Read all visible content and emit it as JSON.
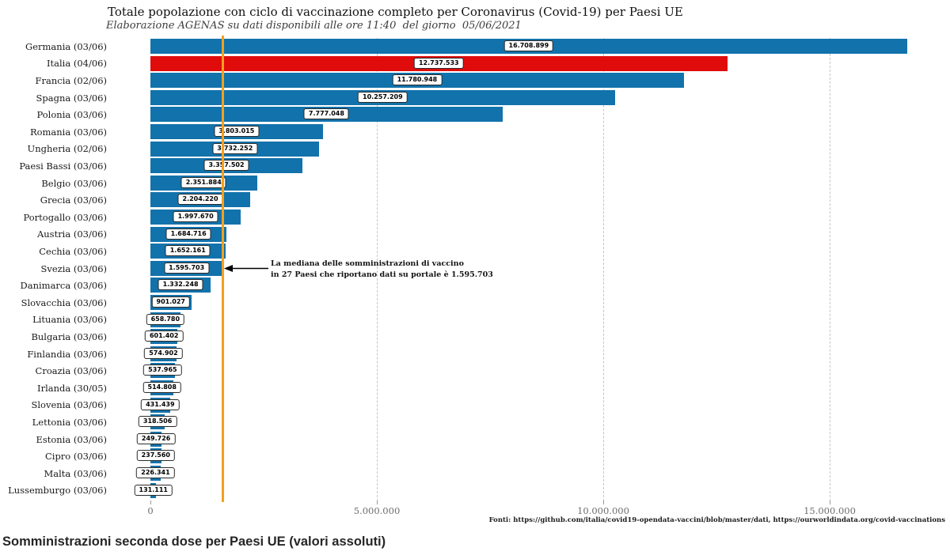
{
  "header": {
    "title": "Totale popolazione con ciclo di vaccinazione completo per Coronavirus (Covid-19) per Paesi UE",
    "subtitle": "Elaborazione AGENAS su dati disponibili alle ore 11:40  del giorno  05/06/2021"
  },
  "chart_data": {
    "type": "bar",
    "orientation": "horizontal",
    "title": "Totale popolazione con ciclo di vaccinazione completo per Coronavirus (Covid-19) per Paesi UE",
    "subtitle": "Elaborazione AGENAS su dati disponibili alle ore 11:40  del giorno  05/06/2021",
    "xlim": [
      0,
      17500000
    ],
    "grid": "vertical-dashed",
    "xticks": [
      {
        "value": 0,
        "label": "0"
      },
      {
        "value": 5000000,
        "label": "5.000.000"
      },
      {
        "value": 10000000,
        "label": "10.000.000"
      },
      {
        "value": 15000000,
        "label": "15.000.000"
      }
    ],
    "bars": [
      {
        "label": "Germania (03/06)",
        "value": 16708899,
        "display": "16.708.899",
        "highlight": false
      },
      {
        "label": "Italia (04/06)",
        "value": 12737533,
        "display": "12.737.533",
        "highlight": true
      },
      {
        "label": "Francia (02/06)",
        "value": 11780948,
        "display": "11.780.948",
        "highlight": false
      },
      {
        "label": "Spagna (03/06)",
        "value": 10257209,
        "display": "10.257.209",
        "highlight": false
      },
      {
        "label": "Polonia (03/06)",
        "value": 7777048,
        "display": "7.777.048",
        "highlight": false
      },
      {
        "label": "Romania (03/06)",
        "value": 3803015,
        "display": "3.803.015",
        "highlight": false
      },
      {
        "label": "Ungheria (02/06)",
        "value": 3732252,
        "display": "3.732.252",
        "highlight": false
      },
      {
        "label": "Paesi Bassi (03/06)",
        "value": 3357502,
        "display": "3.357.502",
        "highlight": false
      },
      {
        "label": "Belgio (03/06)",
        "value": 2351884,
        "display": "2.351.884",
        "highlight": false
      },
      {
        "label": "Grecia (03/06)",
        "value": 2204220,
        "display": "2.204.220",
        "highlight": false
      },
      {
        "label": "Portogallo (03/06)",
        "value": 1997670,
        "display": "1.997.670",
        "highlight": false
      },
      {
        "label": "Austria (03/06)",
        "value": 1684716,
        "display": "1.684.716",
        "highlight": false
      },
      {
        "label": "Cechia (03/06)",
        "value": 1652161,
        "display": "1.652.161",
        "highlight": false
      },
      {
        "label": "Svezia (03/06)",
        "value": 1595703,
        "display": "1.595.703",
        "highlight": false
      },
      {
        "label": "Danimarca (03/06)",
        "value": 1332248,
        "display": "1.332.248",
        "highlight": false
      },
      {
        "label": "Slovacchia (03/06)",
        "value": 901027,
        "display": "901.027",
        "highlight": false
      },
      {
        "label": "Lituania (03/06)",
        "value": 658780,
        "display": "658.780",
        "highlight": false
      },
      {
        "label": "Bulgaria (03/06)",
        "value": 601402,
        "display": "601.402",
        "highlight": false
      },
      {
        "label": "Finlandia (03/06)",
        "value": 574902,
        "display": "574.902",
        "highlight": false
      },
      {
        "label": "Croazia (03/06)",
        "value": 537965,
        "display": "537.965",
        "highlight": false
      },
      {
        "label": "Irlanda (30/05)",
        "value": 514808,
        "display": "514.808",
        "highlight": false
      },
      {
        "label": "Slovenia (03/06)",
        "value": 431439,
        "display": "431.439",
        "highlight": false
      },
      {
        "label": "Lettonia (03/06)",
        "value": 318506,
        "display": "318.506",
        "highlight": false
      },
      {
        "label": "Estonia (03/06)",
        "value": 249726,
        "display": "249.726",
        "highlight": false
      },
      {
        "label": "Cipro (03/06)",
        "value": 237560,
        "display": "237.560",
        "highlight": false
      },
      {
        "label": "Malta (03/06)",
        "value": 226341,
        "display": "226.341",
        "highlight": false
      },
      {
        "label": "Lussemburgo (03/06)",
        "value": 131111,
        "display": "131.111",
        "highlight": false
      }
    ],
    "median": {
      "value": 1595703,
      "annotation_line1": "La mediana delle somministrazioni di vaccino",
      "annotation_line2": "in 27 Paesi che riportano dati su portale è 1.595.703"
    },
    "colors": {
      "bar": "#1272ab",
      "highlight": "#e00b0b",
      "median_line": "#f5a01e",
      "grid": "#c6c6c6",
      "tick_label": "#6e6e6e"
    }
  },
  "footer": {
    "sources": "Fonti: https://github.com/italia/covid19-opendata-vaccini/blob/master/dati, https://ourworldindata.org/covid-vaccinations"
  },
  "bottom_heading": "Somministrazioni seconda dose per Paesi UE (valori assoluti)"
}
